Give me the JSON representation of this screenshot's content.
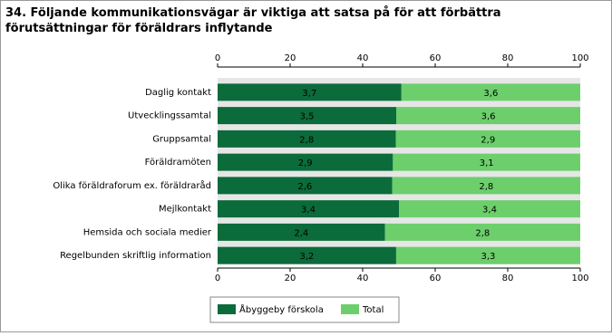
{
  "chart_data": {
    "type": "bar",
    "orientation": "horizontal",
    "stacked": true,
    "normalize": true,
    "title": "34. Följande kommunikationsvägar är viktiga att satsa på för att förbättra förutsättningar för föräldrars inflytande",
    "categories": [
      "Daglig kontakt",
      "Utvecklingssamtal",
      "Gruppsamtal",
      "Föräldramöten",
      "Olika föräldraforum ex. föräldraråd",
      "Mejlkontakt",
      "Hemsida och sociala medier",
      "Regelbunden skriftlig information"
    ],
    "series": [
      {
        "name": "Åbyggeby förskola",
        "color": "#0b6b3a",
        "values": [
          3.7,
          3.5,
          2.8,
          2.9,
          2.6,
          3.4,
          2.4,
          3.2
        ],
        "value_labels": [
          "3,7",
          "3,5",
          "2,8",
          "2,9",
          "2,6",
          "3,4",
          "2,4",
          "3,2"
        ]
      },
      {
        "name": "Total",
        "color": "#6ccf6c",
        "values": [
          3.6,
          3.6,
          2.9,
          3.1,
          2.8,
          3.4,
          2.8,
          3.3
        ],
        "value_labels": [
          "3,6",
          "3,6",
          "2,9",
          "3,1",
          "2,8",
          "3,4",
          "2,8",
          "3,3"
        ]
      }
    ],
    "xlim": [
      0,
      100
    ],
    "xticks": [
      0,
      20,
      40,
      60,
      80,
      100
    ]
  }
}
